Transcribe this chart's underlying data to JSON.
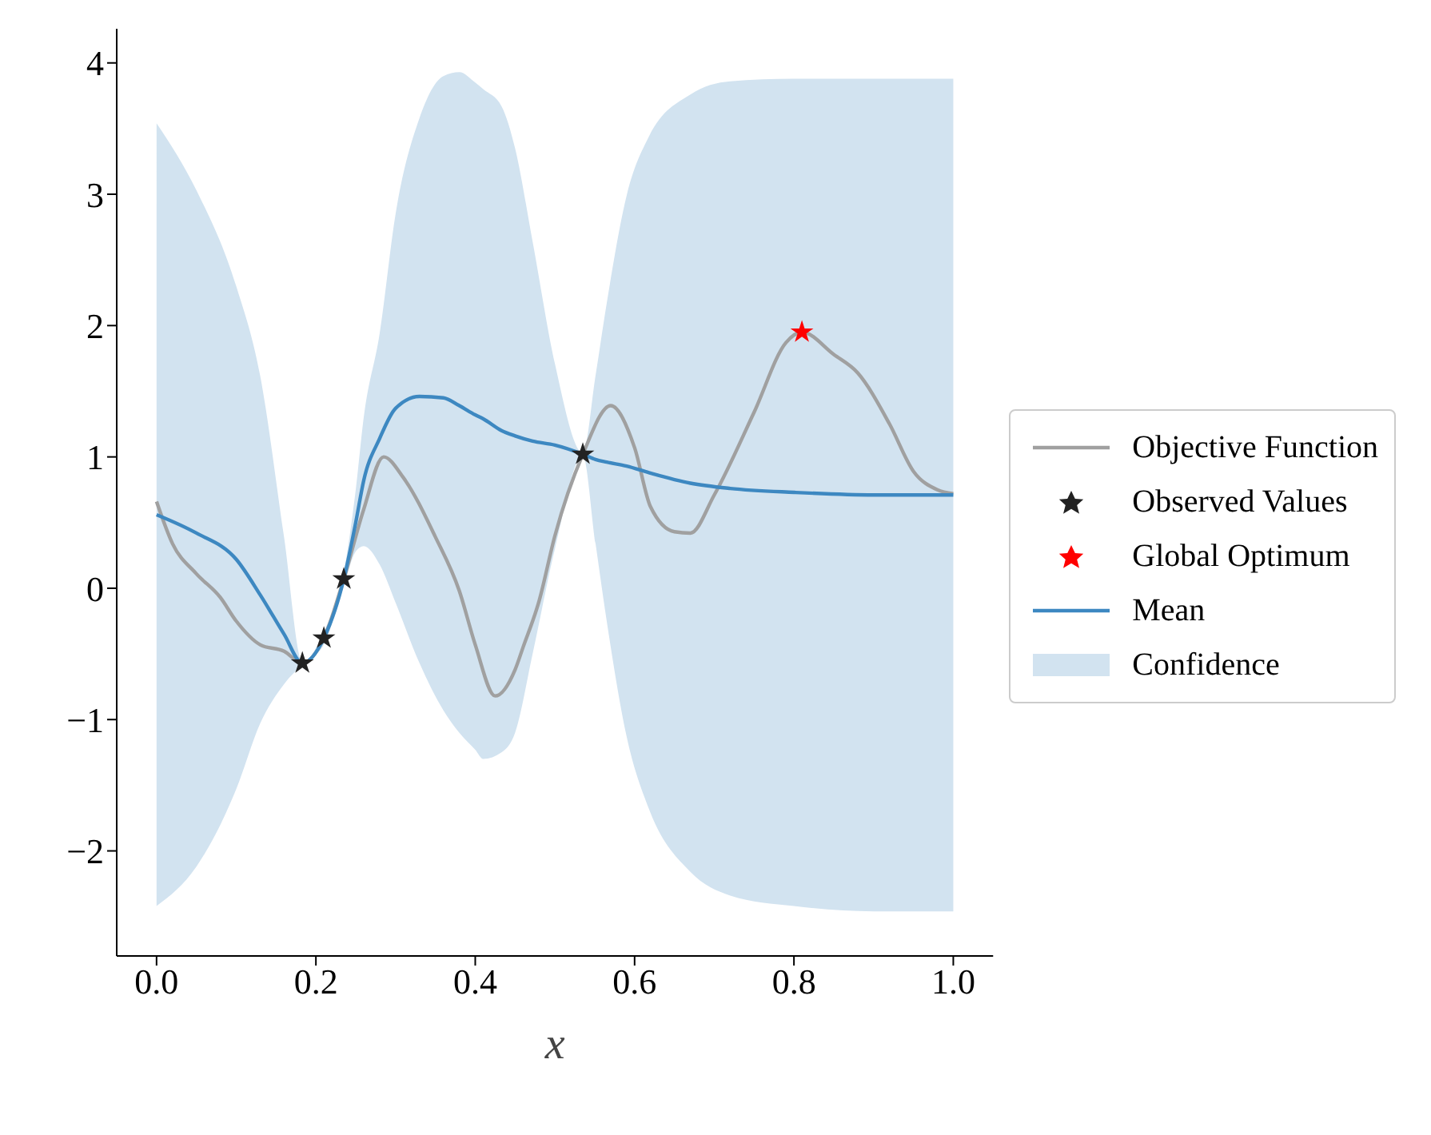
{
  "chart_data": {
    "type": "line",
    "xlabel": "x",
    "xlim": [
      -0.05,
      1.05
    ],
    "ylim": [
      -2.8,
      4.26
    ],
    "xticks": [
      {
        "value": 0,
        "label": "0.0"
      },
      {
        "value": 0.2,
        "label": "0.2"
      },
      {
        "value": 0.4,
        "label": "0.4"
      },
      {
        "value": 0.6,
        "label": "0.6"
      },
      {
        "value": 0.8,
        "label": "0.8"
      },
      {
        "value": 1,
        "label": "1.0"
      }
    ],
    "yticks": [
      {
        "value": -2,
        "label": "−2"
      },
      {
        "value": -1,
        "label": "−1"
      },
      0,
      1,
      2,
      3,
      4
    ],
    "legend": "right",
    "grid": false,
    "series": [
      {
        "name": "Objective Function",
        "color": "#a0a0a0",
        "marker": "none",
        "x": [
          0,
          0.02,
          0.05,
          0.08,
          0.1,
          0.13,
          0.16,
          0.183,
          0.21,
          0.235,
          0.26,
          0.285,
          0.31,
          0.35,
          0.38,
          0.4,
          0.425,
          0.45,
          0.46,
          0.48,
          0.5,
          0.535,
          0.57,
          0.6,
          0.62,
          0.65,
          0.67,
          0.7,
          0.75,
          0.79,
          0.81,
          0.85,
          0.88,
          0.92,
          0.95,
          0.98,
          1
        ],
        "values": [
          0.66,
          0.34,
          0.11,
          -0.07,
          -0.25,
          -0.43,
          -0.48,
          -0.57,
          -0.38,
          0.07,
          0.6,
          1.0,
          0.84,
          0.39,
          -0.02,
          -0.43,
          -0.82,
          -0.62,
          -0.45,
          -0.1,
          0.4,
          1.02,
          1.39,
          1.07,
          0.62,
          0.43,
          0.42,
          0.71,
          1.34,
          1.87,
          1.95,
          1.78,
          1.64,
          1.25,
          0.89,
          0.75,
          0.72
        ]
      },
      {
        "name": "Observed Values",
        "type": "scatter",
        "color": "#222222",
        "marker": "star",
        "x": [
          0.183,
          0.21,
          0.235,
          0.535
        ],
        "values": [
          -0.57,
          -0.38,
          0.07,
          1.02
        ]
      },
      {
        "name": "Global Optimum",
        "type": "scatter",
        "color": "#ff0000",
        "marker": "star",
        "x": [
          0.81
        ],
        "values": [
          1.95
        ]
      },
      {
        "name": "Mean",
        "color": "#3d88c1",
        "marker": "none",
        "x": [
          0,
          0.05,
          0.1,
          0.13,
          0.16,
          0.183,
          0.21,
          0.235,
          0.25,
          0.26,
          0.28,
          0.3,
          0.33,
          0.36,
          0.38,
          0.4,
          0.41,
          0.433,
          0.45,
          0.472,
          0.5,
          0.535,
          0.551,
          0.565,
          0.59,
          0.618,
          0.67,
          0.72,
          0.8,
          0.9,
          1
        ],
        "values": [
          0.56,
          0.42,
          0.22,
          -0.05,
          -0.35,
          -0.57,
          -0.38,
          0.07,
          0.5,
          0.82,
          1.14,
          1.37,
          1.46,
          1.45,
          1.39,
          1.32,
          1.29,
          1.2,
          1.16,
          1.12,
          1.09,
          1.02,
          0.98,
          0.96,
          0.93,
          0.88,
          0.8,
          0.76,
          0.73,
          0.71,
          0.71
        ],
        "lower": [
          -2.42,
          -2.12,
          -1.53,
          -1.03,
          -0.73,
          -0.58,
          -0.43,
          0.02,
          0.28,
          0.32,
          0.18,
          -0.11,
          -0.57,
          -0.93,
          -1.1,
          -1.23,
          -1.3,
          -1.25,
          -1.1,
          -0.5,
          0.3,
          1.01,
          0.34,
          -0.25,
          -1.13,
          -1.68,
          -2.16,
          -2.34,
          -2.42,
          -2.46,
          -2.46
        ],
        "upper": [
          3.54,
          3.03,
          2.3,
          1.62,
          0.39,
          -0.56,
          -0.33,
          0.12,
          0.75,
          1.3,
          1.94,
          2.85,
          3.58,
          3.9,
          3.93,
          3.85,
          3.8,
          3.67,
          3.35,
          2.64,
          1.71,
          1.03,
          1.62,
          2.17,
          2.99,
          3.44,
          3.76,
          3.86,
          3.88,
          3.88,
          3.88
        ]
      },
      {
        "name": "Confidence",
        "type": "area",
        "color": "#d2e3f0"
      }
    ]
  }
}
